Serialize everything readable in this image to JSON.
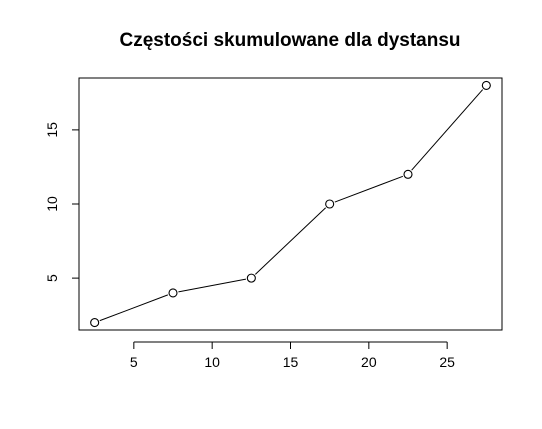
{
  "chart_data": {
    "type": "line",
    "title": "Częstości skumulowane dla dystansu",
    "xlabel": "",
    "ylabel": "",
    "x": [
      2.5,
      7.5,
      12.5,
      17.5,
      22.5,
      27.5
    ],
    "series": [
      {
        "values": [
          2,
          4,
          5,
          10,
          12,
          18
        ]
      }
    ],
    "xlim": [
      1.5,
      28.5
    ],
    "ylim": [
      1.5,
      18.5
    ],
    "x_ticks": [
      5,
      10,
      15,
      20,
      25
    ],
    "y_ticks": [
      5,
      10,
      15
    ],
    "x_tick_labels": [
      "5",
      "10",
      "15",
      "20",
      "25"
    ],
    "y_tick_labels": [
      "5",
      "10",
      "15"
    ],
    "grid": false,
    "legend": "none",
    "marker": "open-circle"
  }
}
